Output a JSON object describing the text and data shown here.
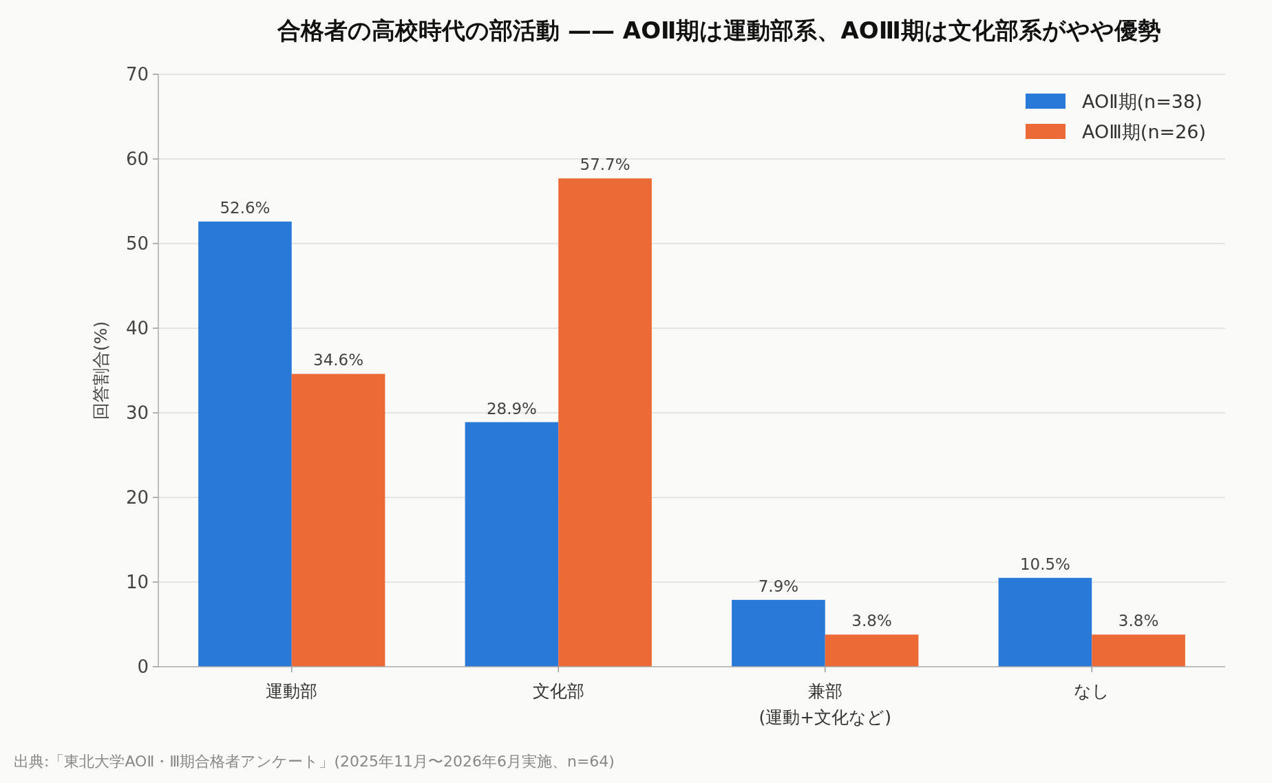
{
  "chart_data": {
    "type": "bar",
    "title": "合格者の高校時代の部活動 —— AOⅡ期は運動部系、AOⅢ期は文化部系がやや優勢",
    "ylabel": "回答割合(%)",
    "categories": [
      "運動部",
      "文化部",
      "兼部\n(運動+文化など)",
      "なし"
    ],
    "series": [
      {
        "name": "AOⅡ期(n=38)",
        "color": "#2979d8",
        "values": [
          52.6,
          28.9,
          7.9,
          10.5
        ],
        "value_labels": [
          "52.6%",
          "28.9%",
          "7.9%",
          "10.5%"
        ]
      },
      {
        "name": "AOⅢ期(n=26)",
        "color": "#ec6a36",
        "values": [
          34.6,
          57.7,
          3.8,
          3.8
        ],
        "value_labels": [
          "34.6%",
          "57.7%",
          "3.8%",
          "3.8%"
        ]
      }
    ],
    "ylim": [
      0,
      70
    ],
    "yticks": [
      0,
      10,
      20,
      30,
      40,
      50,
      60,
      70
    ],
    "grid": "y",
    "legend": "top right",
    "annotations": [
      "出典:「東北大学AOⅡ・Ⅲ期合格者アンケート」(2025年11月〜2026年6月実施、n=64)"
    ]
  }
}
